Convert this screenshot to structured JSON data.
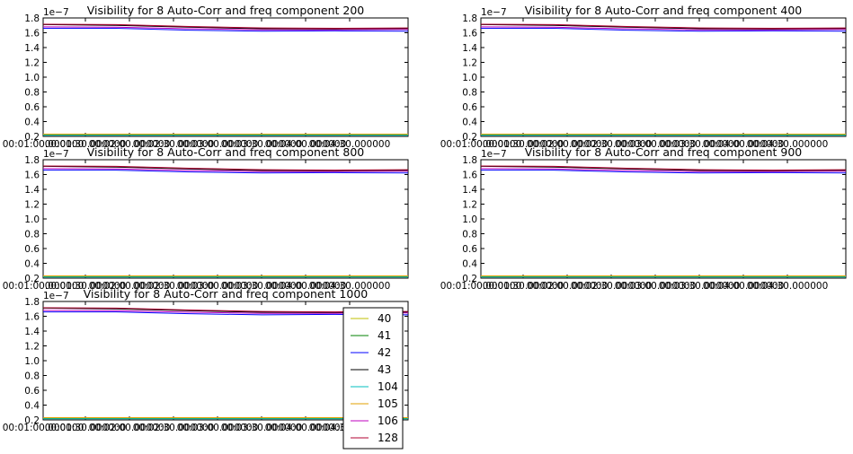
{
  "chart_data": [
    {
      "type": "line",
      "title": "Visibility for 8 Auto-Corr and freq component 200",
      "scale_label": "1e−7",
      "ylim": [
        0.2,
        1.8
      ],
      "y_ticks": [
        "0.2",
        "0.4",
        "0.6",
        "0.8",
        "1.0",
        "1.2",
        "1.4",
        "1.6",
        "1.8"
      ],
      "x_tick_labels": [
        "00:01:00.000000",
        "00:01:30.000000",
        "00:02:00.000000",
        "00:02:30.000000",
        "00:03:00.000000",
        "00:03:30.000000",
        "00:04:00.000000",
        "00:04:30.000000"
      ],
      "x": [
        0,
        0.2,
        0.4,
        0.6,
        0.8,
        1.0
      ],
      "series": [
        {
          "name": "40",
          "color": "#bfbf00",
          "values": [
            0.22,
            0.22,
            0.22,
            0.22,
            0.22,
            0.22
          ]
        },
        {
          "name": "41",
          "color": "#008000",
          "values": [
            0.225,
            0.225,
            0.225,
            0.225,
            0.225,
            0.225
          ]
        },
        {
          "name": "42",
          "color": "#0000ff",
          "values": [
            1.66,
            1.66,
            1.635,
            1.62,
            1.625,
            1.62
          ]
        },
        {
          "name": "43",
          "color": "#000000",
          "values": [
            1.71,
            1.7,
            1.675,
            1.655,
            1.65,
            1.655
          ]
        },
        {
          "name": "104",
          "color": "#00bfbf",
          "values": [
            0.215,
            0.215,
            0.215,
            0.215,
            0.215,
            0.215
          ]
        },
        {
          "name": "105",
          "color": "#e0a000",
          "values": [
            0.23,
            0.23,
            0.23,
            0.23,
            0.23,
            0.23
          ]
        },
        {
          "name": "106",
          "color": "#bf00bf",
          "values": [
            1.68,
            1.675,
            1.655,
            1.64,
            1.64,
            1.645
          ]
        },
        {
          "name": "128",
          "color": "#b00030",
          "values": [
            1.715,
            1.71,
            1.685,
            1.665,
            1.66,
            1.665
          ]
        }
      ]
    },
    {
      "type": "line",
      "title": "Visibility for 8 Auto-Corr and freq component 400",
      "scale_label": "1e−7",
      "ylim": [
        0.2,
        1.8
      ],
      "y_ticks": [
        "0.2",
        "0.4",
        "0.6",
        "0.8",
        "1.0",
        "1.2",
        "1.4",
        "1.6",
        "1.8"
      ],
      "x_tick_labels": [
        "00:01:00.000000",
        "00:01:30.000000",
        "00:02:00.000000",
        "00:02:30.000000",
        "00:03:00.000000",
        "00:03:30.000000",
        "00:04:00.000000",
        "00:04:30.000000"
      ],
      "x": [
        0,
        0.2,
        0.4,
        0.6,
        0.8,
        1.0
      ],
      "series": [
        {
          "name": "40",
          "color": "#bfbf00",
          "values": [
            0.22,
            0.22,
            0.22,
            0.22,
            0.22,
            0.22
          ]
        },
        {
          "name": "41",
          "color": "#008000",
          "values": [
            0.225,
            0.225,
            0.225,
            0.225,
            0.225,
            0.225
          ]
        },
        {
          "name": "42",
          "color": "#0000ff",
          "values": [
            1.66,
            1.66,
            1.635,
            1.62,
            1.625,
            1.62
          ]
        },
        {
          "name": "43",
          "color": "#000000",
          "values": [
            1.71,
            1.7,
            1.675,
            1.655,
            1.65,
            1.655
          ]
        },
        {
          "name": "104",
          "color": "#00bfbf",
          "values": [
            0.215,
            0.215,
            0.215,
            0.215,
            0.215,
            0.215
          ]
        },
        {
          "name": "105",
          "color": "#e0a000",
          "values": [
            0.23,
            0.23,
            0.23,
            0.23,
            0.23,
            0.23
          ]
        },
        {
          "name": "106",
          "color": "#bf00bf",
          "values": [
            1.68,
            1.675,
            1.655,
            1.64,
            1.64,
            1.645
          ]
        },
        {
          "name": "128",
          "color": "#b00030",
          "values": [
            1.715,
            1.71,
            1.685,
            1.665,
            1.66,
            1.665
          ]
        }
      ]
    },
    {
      "type": "line",
      "title": "Visibility for 8 Auto-Corr and freq component 800",
      "scale_label": "1e−7",
      "ylim": [
        0.2,
        1.8
      ],
      "y_ticks": [
        "0.2",
        "0.4",
        "0.6",
        "0.8",
        "1.0",
        "1.2",
        "1.4",
        "1.6",
        "1.8"
      ],
      "x_tick_labels": [
        "00:01:00.000000",
        "00:01:30.000000",
        "00:02:00.000000",
        "00:02:30.000000",
        "00:03:00.000000",
        "00:03:30.000000",
        "00:04:00.000000",
        "00:04:30.000000"
      ],
      "x": [
        0,
        0.2,
        0.4,
        0.6,
        0.8,
        1.0
      ],
      "series": [
        {
          "name": "40",
          "color": "#bfbf00",
          "values": [
            0.22,
            0.22,
            0.22,
            0.22,
            0.22,
            0.22
          ]
        },
        {
          "name": "41",
          "color": "#008000",
          "values": [
            0.225,
            0.225,
            0.225,
            0.225,
            0.225,
            0.225
          ]
        },
        {
          "name": "42",
          "color": "#0000ff",
          "values": [
            1.66,
            1.66,
            1.635,
            1.62,
            1.625,
            1.62
          ]
        },
        {
          "name": "43",
          "color": "#000000",
          "values": [
            1.71,
            1.7,
            1.675,
            1.655,
            1.65,
            1.655
          ]
        },
        {
          "name": "104",
          "color": "#00bfbf",
          "values": [
            0.215,
            0.215,
            0.215,
            0.215,
            0.215,
            0.215
          ]
        },
        {
          "name": "105",
          "color": "#e0a000",
          "values": [
            0.23,
            0.23,
            0.23,
            0.23,
            0.23,
            0.23
          ]
        },
        {
          "name": "106",
          "color": "#bf00bf",
          "values": [
            1.68,
            1.675,
            1.655,
            1.64,
            1.64,
            1.645
          ]
        },
        {
          "name": "128",
          "color": "#b00030",
          "values": [
            1.715,
            1.71,
            1.685,
            1.665,
            1.66,
            1.665
          ]
        }
      ]
    },
    {
      "type": "line",
      "title": "Visibility for 8 Auto-Corr and freq component 900",
      "scale_label": "1e−7",
      "ylim": [
        0.2,
        1.8
      ],
      "y_ticks": [
        "0.2",
        "0.4",
        "0.6",
        "0.8",
        "1.0",
        "1.2",
        "1.4",
        "1.6",
        "1.8"
      ],
      "x_tick_labels": [
        "00:01:00.000000",
        "00:01:30.000000",
        "00:02:00.000000",
        "00:02:30.000000",
        "00:03:00.000000",
        "00:03:30.000000",
        "00:04:00.000000",
        "00:04:30.000000"
      ],
      "x": [
        0,
        0.2,
        0.4,
        0.6,
        0.8,
        1.0
      ],
      "series": [
        {
          "name": "40",
          "color": "#bfbf00",
          "values": [
            0.22,
            0.22,
            0.22,
            0.22,
            0.22,
            0.22
          ]
        },
        {
          "name": "41",
          "color": "#008000",
          "values": [
            0.225,
            0.225,
            0.225,
            0.225,
            0.225,
            0.225
          ]
        },
        {
          "name": "42",
          "color": "#0000ff",
          "values": [
            1.66,
            1.66,
            1.635,
            1.62,
            1.625,
            1.62
          ]
        },
        {
          "name": "43",
          "color": "#000000",
          "values": [
            1.71,
            1.7,
            1.675,
            1.655,
            1.65,
            1.655
          ]
        },
        {
          "name": "104",
          "color": "#00bfbf",
          "values": [
            0.215,
            0.215,
            0.215,
            0.215,
            0.215,
            0.215
          ]
        },
        {
          "name": "105",
          "color": "#e0a000",
          "values": [
            0.23,
            0.23,
            0.23,
            0.23,
            0.23,
            0.23
          ]
        },
        {
          "name": "106",
          "color": "#bf00bf",
          "values": [
            1.68,
            1.675,
            1.655,
            1.64,
            1.64,
            1.645
          ]
        },
        {
          "name": "128",
          "color": "#b00030",
          "values": [
            1.715,
            1.71,
            1.685,
            1.665,
            1.66,
            1.665
          ]
        }
      ]
    },
    {
      "type": "line",
      "title": "Visibility for 8 Auto-Corr and freq component 1000",
      "scale_label": "1e−7",
      "ylim": [
        0.2,
        1.8
      ],
      "y_ticks": [
        "0.2",
        "0.4",
        "0.6",
        "0.8",
        "1.0",
        "1.2",
        "1.4",
        "1.6",
        "1.8"
      ],
      "x_tick_labels": [
        "00:01:00.000000",
        "00:01:30.000000",
        "00:02:00.000000",
        "00:02:30.000000",
        "00:03:00.000000",
        "00:03:30.000000",
        "00:04:00.000000",
        "00:04:30.000000"
      ],
      "x": [
        0,
        0.2,
        0.4,
        0.6,
        0.8,
        1.0
      ],
      "legend": "right",
      "series": [
        {
          "name": "40",
          "color": "#bfbf00",
          "values": [
            0.22,
            0.22,
            0.22,
            0.22,
            0.22,
            0.22
          ]
        },
        {
          "name": "41",
          "color": "#008000",
          "values": [
            0.225,
            0.225,
            0.225,
            0.225,
            0.225,
            0.225
          ]
        },
        {
          "name": "42",
          "color": "#0000ff",
          "values": [
            1.66,
            1.66,
            1.635,
            1.62,
            1.625,
            1.62
          ]
        },
        {
          "name": "43",
          "color": "#000000",
          "values": [
            1.71,
            1.7,
            1.675,
            1.655,
            1.65,
            1.655
          ]
        },
        {
          "name": "104",
          "color": "#00bfbf",
          "values": [
            0.215,
            0.215,
            0.215,
            0.215,
            0.215,
            0.215
          ]
        },
        {
          "name": "105",
          "color": "#e0a000",
          "values": [
            0.23,
            0.23,
            0.23,
            0.23,
            0.23,
            0.23
          ]
        },
        {
          "name": "106",
          "color": "#bf00bf",
          "values": [
            1.68,
            1.675,
            1.655,
            1.64,
            1.64,
            1.645
          ]
        },
        {
          "name": "128",
          "color": "#b00030",
          "values": [
            1.715,
            1.71,
            1.685,
            1.665,
            1.66,
            1.665
          ]
        }
      ]
    }
  ]
}
